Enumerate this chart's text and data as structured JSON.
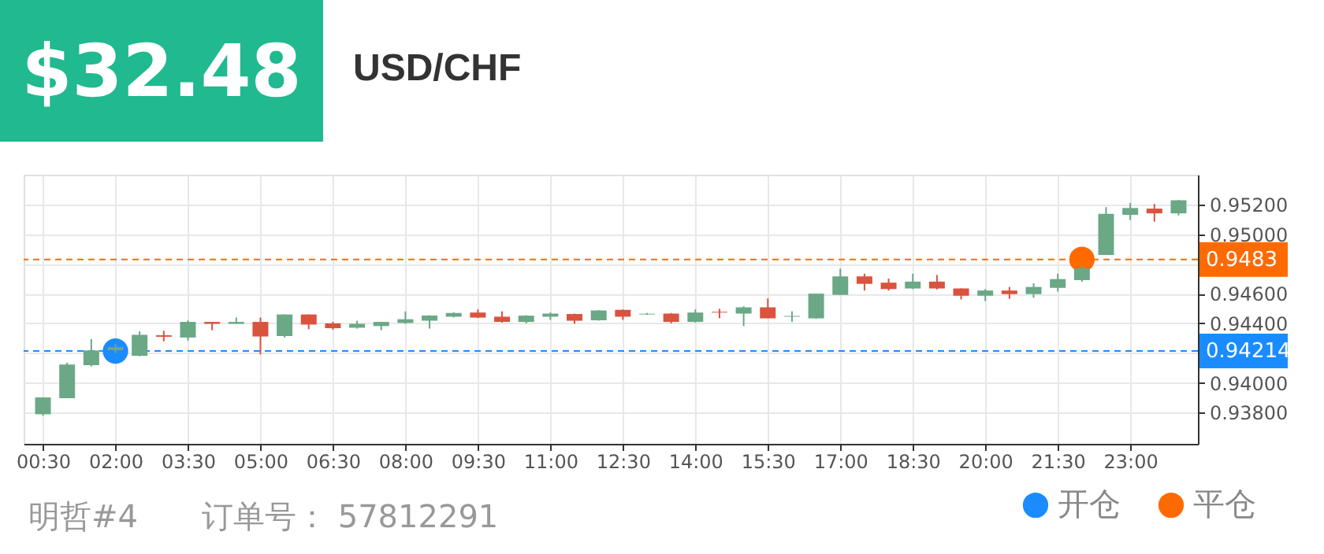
{
  "chart_data": {
    "type": "candlestick",
    "title": "$32.48",
    "subtitle": "USD/CHF",
    "annotations": [
      "明哲#4",
      "订单号： 57812291"
    ],
    "x": [
      0.5,
      1,
      1.5,
      2,
      2.5,
      3,
      3.5,
      4,
      4.5,
      5,
      5.5,
      6,
      6.5,
      7,
      7.5,
      8,
      8.5,
      9,
      9.5,
      10,
      10.5,
      11,
      11.5,
      12,
      12.5,
      13,
      13.5,
      14,
      14.5,
      15,
      15.5,
      16,
      16.5,
      17,
      17.5,
      18,
      18.5,
      19,
      19.5,
      20,
      20.5,
      21,
      21.5,
      22,
      22.5,
      23,
      23.5,
      24
    ],
    "ohlc": [
      [
        0.93789,
        0.93902,
        0.93778,
        0.93902
      ],
      [
        0.93897,
        0.94136,
        0.93897,
        0.94123
      ],
      [
        0.94119,
        0.94294,
        0.9411,
        0.94218
      ],
      [
        0.9422,
        0.9426,
        0.942,
        0.9424
      ],
      [
        0.94182,
        0.94347,
        0.94179,
        0.94323
      ],
      [
        0.9432,
        0.9435,
        0.9428,
        0.9431
      ],
      [
        0.94305,
        0.9442,
        0.94284,
        0.9441
      ],
      [
        0.9441,
        0.9441,
        0.94354,
        0.94397
      ],
      [
        0.94397,
        0.94439,
        0.94397,
        0.9441
      ],
      [
        0.9441,
        0.94439,
        0.94192,
        0.94312
      ],
      [
        0.94315,
        0.9446,
        0.94305,
        0.9446
      ],
      [
        0.9446,
        0.9446,
        0.94361,
        0.94392
      ],
      [
        0.944,
        0.9441,
        0.94358,
        0.94368
      ],
      [
        0.94371,
        0.94418,
        0.94365,
        0.94397
      ],
      [
        0.94382,
        0.9441,
        0.94354,
        0.9441
      ],
      [
        0.94403,
        0.94481,
        0.94397,
        0.94428
      ],
      [
        0.94418,
        0.94455,
        0.94365,
        0.94452
      ],
      [
        0.94445,
        0.94475,
        0.9444,
        0.9447
      ],
      [
        0.94473,
        0.94494,
        0.94436,
        0.94439
      ],
      [
        0.94445,
        0.94481,
        0.94405,
        0.9441
      ],
      [
        0.9441,
        0.94455,
        0.944,
        0.94452
      ],
      [
        0.94445,
        0.94473,
        0.94424,
        0.94466
      ],
      [
        0.94463,
        0.94466,
        0.94397,
        0.94418
      ],
      [
        0.94421,
        0.9449,
        0.94418,
        0.94487
      ],
      [
        0.94491,
        0.94494,
        0.94424,
        0.94445
      ],
      [
        0.9446,
        0.9447,
        0.94458,
        0.94465
      ],
      [
        0.94466,
        0.9447,
        0.944,
        0.9441
      ],
      [
        0.9441,
        0.94494,
        0.94405,
        0.94473
      ],
      [
        0.94478,
        0.94498,
        0.94435,
        0.94473
      ],
      [
        0.94466,
        0.94515,
        0.94382,
        0.94508
      ],
      [
        0.94508,
        0.94568,
        0.94434,
        0.94434
      ],
      [
        0.94445,
        0.94481,
        0.9441,
        0.9445
      ],
      [
        0.94434,
        0.946,
        0.9443,
        0.946
      ],
      [
        0.94592,
        0.94768,
        0.9459,
        0.94716
      ],
      [
        0.94716,
        0.94734,
        0.94621,
        0.94666
      ],
      [
        0.94674,
        0.94702,
        0.94621,
        0.94631
      ],
      [
        0.94635,
        0.94734,
        0.94631,
        0.94681
      ],
      [
        0.94681,
        0.94726,
        0.94628,
        0.94635
      ],
      [
        0.94635,
        0.94635,
        0.94561,
        0.94586
      ],
      [
        0.94586,
        0.94631,
        0.9455,
        0.94621
      ],
      [
        0.94621,
        0.94645,
        0.94565,
        0.94597
      ],
      [
        0.94597,
        0.9467,
        0.94572,
        0.94645
      ],
      [
        0.94639,
        0.94734,
        0.94614,
        0.94698
      ],
      [
        0.94691,
        0.9479,
        0.9468,
        0.9477
      ],
      [
        0.9486,
        0.95182,
        0.9486,
        0.95137
      ],
      [
        0.9513,
        0.9521,
        0.95095,
        0.95176
      ],
      [
        0.95172,
        0.95203,
        0.95084,
        0.9514
      ],
      [
        0.9514,
        0.9523,
        0.95126,
        0.95228
      ]
    ],
    "series": [
      {
        "name": "开仓",
        "type": "scatter",
        "color": "#1a8cff",
        "x": [
          2
        ],
        "values": [
          0.94214
        ]
      },
      {
        "name": "平仓",
        "type": "scatter",
        "color": "#ff6a00",
        "x": [
          22
        ],
        "values": [
          0.9483
        ]
      }
    ],
    "ref_lines": [
      {
        "axis": "y",
        "value": 0.94214,
        "label": "0.94214",
        "color": "#1a8cff",
        "line_style": "dashed"
      },
      {
        "axis": "y",
        "value": 0.9483,
        "label": "0.9483",
        "color": "#ff6a00",
        "line_style": "dashed"
      }
    ],
    "xlim": [
      0.1,
      24.4
    ],
    "xticks": [
      {
        "value": 0.5,
        "label": "00:30"
      },
      {
        "value": 2,
        "label": "02:00"
      },
      {
        "value": 3.5,
        "label": "03:30"
      },
      {
        "value": 5,
        "label": "05:00"
      },
      {
        "value": 6.5,
        "label": "06:30"
      },
      {
        "value": 8,
        "label": "08:00"
      },
      {
        "value": 9.5,
        "label": "09:30"
      },
      {
        "value": 11,
        "label": "11:00"
      },
      {
        "value": 12.5,
        "label": "12:30"
      },
      {
        "value": 14,
        "label": "14:00"
      },
      {
        "value": 15.5,
        "label": "15:30"
      },
      {
        "value": 17,
        "label": "17:00"
      },
      {
        "value": 18.5,
        "label": "18:30"
      },
      {
        "value": 20,
        "label": "20:00"
      },
      {
        "value": 21.5,
        "label": "21:30"
      },
      {
        "value": 23,
        "label": "23:00"
      }
    ],
    "ylim": [
      0.9359,
      0.954
    ],
    "yticks": [
      {
        "value": 0.938,
        "label": "0.93800"
      },
      {
        "value": 0.94,
        "label": "0.94000"
      },
      {
        "value": 0.942,
        "label": null
      },
      {
        "value": 0.944,
        "label": "0.94400"
      },
      {
        "value": 0.946,
        "label": "0.94600"
      },
      {
        "value": 0.948,
        "label": null
      },
      {
        "value": 0.95,
        "label": "0.95000"
      },
      {
        "value": 0.952,
        "label": "0.95200"
      }
    ],
    "grid": true,
    "legend": "bottom right",
    "marker": "circle"
  }
}
